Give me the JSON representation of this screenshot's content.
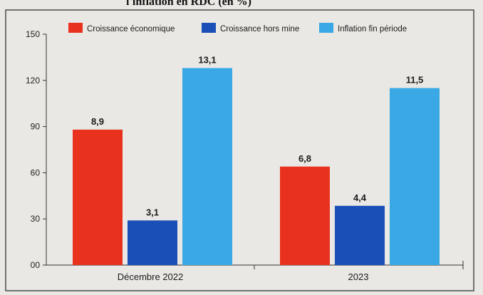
{
  "chart_data": {
    "type": "bar",
    "title": "l'inflation en RDC (en %)",
    "categories": [
      "Décembre 2022",
      "2023"
    ],
    "series": [
      {
        "name": "Croissance économique",
        "color": "#e8321e",
        "values": [
          8.9,
          6.8
        ],
        "labels": [
          "8,9",
          "6,8"
        ],
        "scaled": [
          88,
          64
        ]
      },
      {
        "name": "Croissance hors mine",
        "color": "#1a4fb8",
        "values": [
          3.1,
          4.4
        ],
        "labels": [
          "3,1",
          "4,4"
        ],
        "scaled": [
          29,
          38.5
        ]
      },
      {
        "name": "Inflation fin période",
        "color": "#3aa8e4",
        "values": [
          13.1,
          11.5
        ],
        "labels": [
          "13,1",
          "11,5"
        ],
        "scaled": [
          128,
          115
        ]
      }
    ],
    "ylim": [
      0,
      150
    ],
    "yticks": [
      "00",
      "30",
      "60",
      "90",
      "120",
      "150"
    ],
    "ytick_values": [
      0,
      30,
      60,
      90,
      120,
      150
    ],
    "grid": false,
    "legend_position": "top"
  }
}
